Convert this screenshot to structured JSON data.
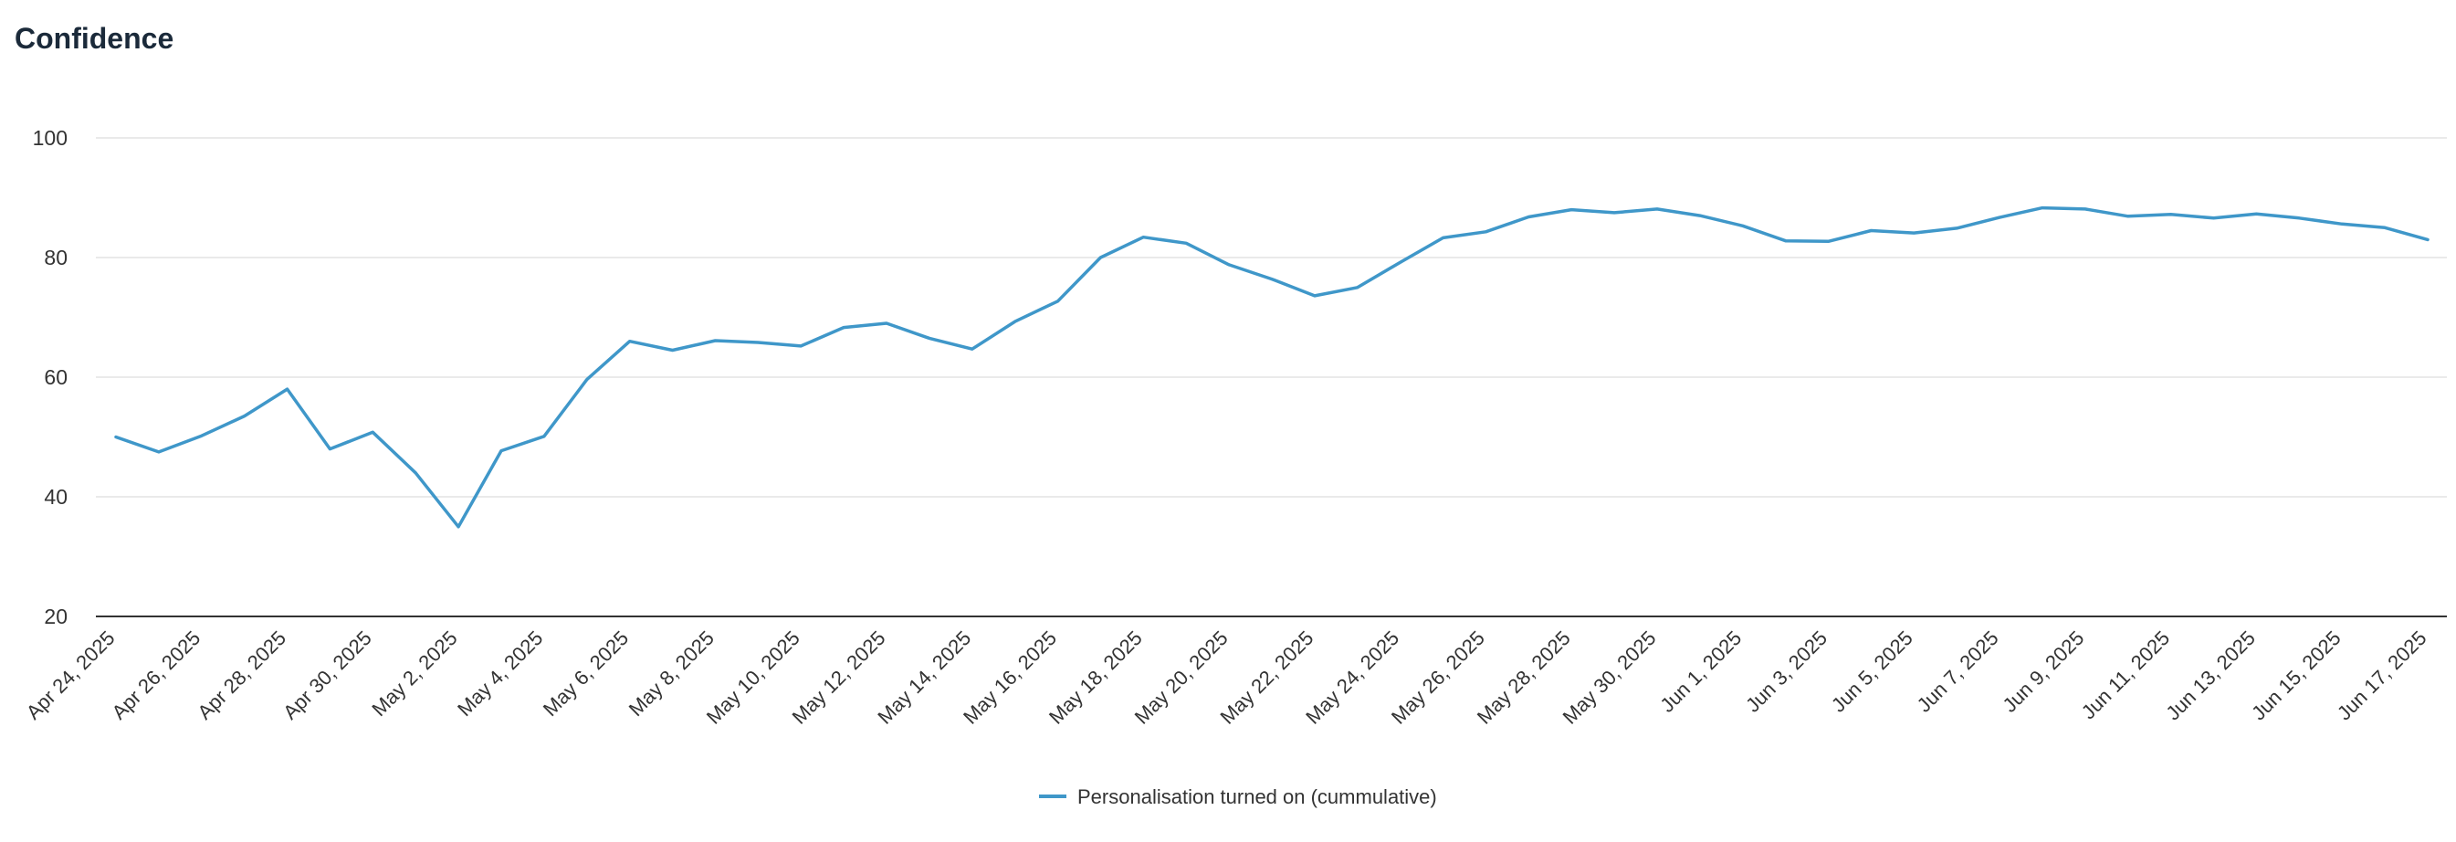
{
  "title": "Confidence",
  "chart_data": {
    "type": "line",
    "title": "Confidence",
    "xlabel": "",
    "ylabel": "",
    "ylim": [
      20,
      100
    ],
    "yticks": [
      "20",
      "40",
      "60",
      "80",
      "100"
    ],
    "grid": true,
    "legend_position": "bottom-center",
    "x_tick_labels": [
      "Apr 24, 2025",
      "Apr 26, 2025",
      "Apr 28, 2025",
      "Apr 30, 2025",
      "May 2, 2025",
      "May 4, 2025",
      "May 6, 2025",
      "May 8, 2025",
      "May 10, 2025",
      "May 12, 2025",
      "May 14, 2025",
      "May 16, 2025",
      "May 18, 2025",
      "May 20, 2025",
      "May 22, 2025",
      "May 24, 2025",
      "May 26, 2025",
      "May 28, 2025",
      "May 30, 2025",
      "Jun 1, 2025",
      "Jun 3, 2025",
      "Jun 5, 2025",
      "Jun 7, 2025",
      "Jun 9, 2025",
      "Jun 11, 2025",
      "Jun 13, 2025",
      "Jun 15, 2025",
      "Jun 17, 2025"
    ],
    "x": [
      "Apr 24, 2025",
      "Apr 25, 2025",
      "Apr 26, 2025",
      "Apr 27, 2025",
      "Apr 28, 2025",
      "Apr 29, 2025",
      "Apr 30, 2025",
      "May 1, 2025",
      "May 2, 2025",
      "May 3, 2025",
      "May 4, 2025",
      "May 5, 2025",
      "May 6, 2025",
      "May 7, 2025",
      "May 8, 2025",
      "May 9, 2025",
      "May 10, 2025",
      "May 11, 2025",
      "May 12, 2025",
      "May 13, 2025",
      "May 14, 2025",
      "May 15, 2025",
      "May 16, 2025",
      "May 17, 2025",
      "May 18, 2025",
      "May 19, 2025",
      "May 20, 2025",
      "May 21, 2025",
      "May 22, 2025",
      "May 23, 2025",
      "May 24, 2025",
      "May 25, 2025",
      "May 26, 2025",
      "May 27, 2025",
      "May 28, 2025",
      "May 29, 2025",
      "May 30, 2025",
      "May 31, 2025",
      "Jun 1, 2025",
      "Jun 2, 2025",
      "Jun 3, 2025",
      "Jun 4, 2025",
      "Jun 5, 2025",
      "Jun 6, 2025",
      "Jun 7, 2025",
      "Jun 8, 2025",
      "Jun 9, 2025",
      "Jun 10, 2025",
      "Jun 11, 2025",
      "Jun 12, 2025",
      "Jun 13, 2025",
      "Jun 14, 2025",
      "Jun 15, 2025",
      "Jun 16, 2025",
      "Jun 17, 2025"
    ],
    "series": [
      {
        "name": "Personalisation turned on (cummulative)",
        "color": "#3f97c9",
        "values": [
          50,
          47.5,
          50.2,
          53.5,
          58,
          48,
          50.8,
          44,
          35,
          47.7,
          50.1,
          59.6,
          66,
          64.5,
          66.1,
          65.8,
          65.2,
          68.3,
          69,
          66.5,
          64.7,
          69.3,
          72.7,
          80,
          83.4,
          82.4,
          78.8,
          76.4,
          73.6,
          75,
          79.2,
          83.3,
          84.3,
          86.8,
          88,
          87.5,
          88.1,
          87,
          85.3,
          82.8,
          82.7,
          84.5,
          84.1,
          84.9,
          86.7,
          88.3,
          88.1,
          86.9,
          87.2,
          86.6,
          87.3,
          86.6,
          85.6,
          85,
          83
        ]
      }
    ]
  }
}
